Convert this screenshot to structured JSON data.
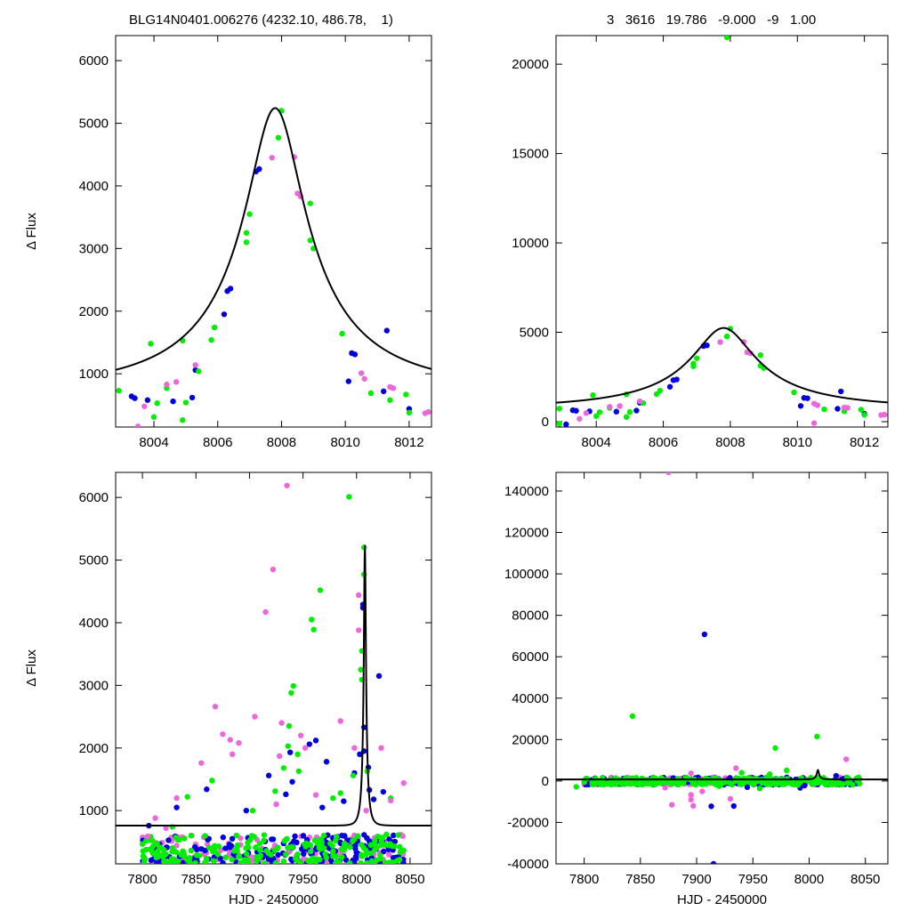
{
  "header": {
    "left": "BLG14N0401.006276 (4232.10, 486.78,    1)",
    "right": "3   3616   19.786   -9.000   -9   1.00"
  },
  "colors": {
    "blue": "#0000dd",
    "green": "#00ee00",
    "pink": "#ee66dd",
    "model": "#000000"
  },
  "chart_data": [
    {
      "type": "scatter",
      "panel": "top-left",
      "xlabel": "",
      "ylabel": "Δ Flux",
      "xlim": [
        8002.8,
        8012.7
      ],
      "ylim": [
        150,
        6400
      ],
      "xticks": [
        8004,
        8006,
        8008,
        8010,
        8012
      ],
      "yticks": [
        1000,
        2000,
        3000,
        4000,
        5000,
        6000
      ],
      "model": {
        "t0": 7.8,
        "u0": 0.2,
        "tE": 4.6,
        "fs": 1100,
        "base": -340
      },
      "series": [
        {
          "color": "blue",
          "points": [
            [
              8003.3,
              640
            ],
            [
              8003.4,
              610
            ],
            [
              8003.8,
              580
            ],
            [
              8004.6,
              560
            ],
            [
              8005.2,
              620
            ],
            [
              8005.3,
              1060
            ],
            [
              8006.2,
              1950
            ],
            [
              8006.3,
              2320
            ],
            [
              8006.4,
              2360
            ],
            [
              8007.2,
              4230
            ],
            [
              8007.3,
              4270
            ],
            [
              8010.2,
              1330
            ],
            [
              8010.3,
              1310
            ],
            [
              8010.1,
              880
            ],
            [
              8011.2,
              720
            ],
            [
              8011.3,
              1690
            ],
            [
              8012.0,
              440
            ]
          ]
        },
        {
          "color": "green",
          "points": [
            [
              8002.9,
              730
            ],
            [
              8003.9,
              1480
            ],
            [
              8004.0,
              310
            ],
            [
              8004.1,
              530
            ],
            [
              8004.4,
              770
            ],
            [
              8004.9,
              1530
            ],
            [
              8004.9,
              260
            ],
            [
              8005.0,
              540
            ],
            [
              8005.4,
              1040
            ],
            [
              8005.9,
              1740
            ],
            [
              8005.8,
              1540
            ],
            [
              8006.9,
              3250
            ],
            [
              8006.9,
              3100
            ],
            [
              8007.0,
              3550
            ],
            [
              8007.9,
              4770
            ],
            [
              8008.0,
              5200
            ],
            [
              8008.9,
              3720
            ],
            [
              8008.9,
              3130
            ],
            [
              8009.0,
              3000
            ],
            [
              8009.9,
              1640
            ],
            [
              8010.8,
              690
            ],
            [
              8011.4,
              580
            ],
            [
              8011.9,
              670
            ],
            [
              8012.0,
              380
            ]
          ]
        },
        {
          "color": "pink",
          "points": [
            [
              8003.5,
              160
            ],
            [
              8003.7,
              480
            ],
            [
              8004.4,
              830
            ],
            [
              8004.7,
              870
            ],
            [
              8005.3,
              1140
            ],
            [
              8007.7,
              4450
            ],
            [
              8008.4,
              4460
            ],
            [
              8008.5,
              3880
            ],
            [
              8008.6,
              3830
            ],
            [
              8010.5,
              1010
            ],
            [
              8010.6,
              920
            ],
            [
              8011.4,
              790
            ],
            [
              8011.5,
              770
            ],
            [
              8012.6,
              390
            ],
            [
              8012.5,
              370
            ]
          ]
        }
      ]
    },
    {
      "type": "scatter",
      "panel": "top-right",
      "xlabel": "",
      "ylabel": "",
      "xlim": [
        8002.8,
        8012.7
      ],
      "ylim": [
        -300,
        21600
      ],
      "xticks": [
        8004,
        8006,
        8008,
        8010,
        8012
      ],
      "yticks": [
        0,
        5000,
        10000,
        15000,
        20000
      ],
      "model": {
        "t0": 7.8,
        "u0": 0.2,
        "tE": 4.6,
        "fs": 1100,
        "base": -340
      },
      "series": [
        {
          "color": "blue",
          "points": [
            [
              8003.3,
              640
            ],
            [
              8003.4,
              610
            ],
            [
              8003.8,
              580
            ],
            [
              8004.6,
              560
            ],
            [
              8005.2,
              620
            ],
            [
              8005.3,
              1060
            ],
            [
              8006.2,
              1950
            ],
            [
              8006.3,
              2320
            ],
            [
              8006.4,
              2360
            ],
            [
              8007.2,
              4230
            ],
            [
              8007.3,
              4270
            ],
            [
              8010.2,
              1330
            ],
            [
              8010.3,
              1310
            ],
            [
              8010.1,
              880
            ],
            [
              8011.2,
              720
            ],
            [
              8011.3,
              1690
            ],
            [
              8012.0,
              440
            ],
            [
              8003.1,
              -150
            ]
          ]
        },
        {
          "color": "green",
          "points": [
            [
              8002.9,
              730
            ],
            [
              8003.9,
              1480
            ],
            [
              8004.0,
              310
            ],
            [
              8004.1,
              530
            ],
            [
              8004.4,
              770
            ],
            [
              8004.9,
              1530
            ],
            [
              8004.9,
              260
            ],
            [
              8005.0,
              540
            ],
            [
              8005.4,
              1040
            ],
            [
              8005.9,
              1740
            ],
            [
              8005.8,
              1540
            ],
            [
              8006.9,
              3250
            ],
            [
              8006.9,
              3100
            ],
            [
              8007.0,
              3550
            ],
            [
              8007.9,
              4770
            ],
            [
              8008.0,
              5200
            ],
            [
              8008.9,
              3720
            ],
            [
              8008.9,
              3130
            ],
            [
              8009.0,
              3000
            ],
            [
              8009.9,
              1640
            ],
            [
              8010.8,
              690
            ],
            [
              8011.4,
              580
            ],
            [
              8011.9,
              670
            ],
            [
              8012.0,
              380
            ],
            [
              8007.9,
              21500
            ],
            [
              8002.9,
              -120
            ]
          ]
        },
        {
          "color": "pink",
          "points": [
            [
              8003.5,
              160
            ],
            [
              8003.7,
              480
            ],
            [
              8004.4,
              830
            ],
            [
              8004.7,
              870
            ],
            [
              8005.3,
              1140
            ],
            [
              8007.7,
              4450
            ],
            [
              8008.4,
              4460
            ],
            [
              8008.5,
              3880
            ],
            [
              8008.6,
              3830
            ],
            [
              8010.5,
              1010
            ],
            [
              8010.6,
              920
            ],
            [
              8011.4,
              790
            ],
            [
              8011.5,
              770
            ],
            [
              8012.6,
              390
            ],
            [
              8012.5,
              370
            ],
            [
              8010.5,
              -80
            ]
          ]
        }
      ]
    },
    {
      "type": "scatter",
      "panel": "bottom-left",
      "xlabel": "HJD - 2450000",
      "ylabel": "Δ Flux",
      "xlim": [
        7775,
        8070
      ],
      "ylim": [
        150,
        6400
      ],
      "xticks": [
        7800,
        7850,
        7900,
        7950,
        8000,
        8050
      ],
      "yticks": [
        1000,
        2000,
        3000,
        4000,
        5000,
        6000
      ],
      "model": {
        "t0": 8007.8,
        "u0": 0.2,
        "tE": 4.6,
        "fs": 1100,
        "base": -340
      },
      "dense": {
        "x_range": [
          7800,
          8045
        ],
        "y_range": [
          160,
          620
        ],
        "counts": {
          "blue": 170,
          "green": 210,
          "pink": 130
        },
        "seed": 7
      },
      "series": [
        {
          "color": "blue",
          "points": [
            [
              7806,
              760
            ],
            [
              7832,
              1050
            ],
            [
              7860,
              1340
            ],
            [
              7897,
              1000
            ],
            [
              7918,
              1560
            ],
            [
              7938,
              1930
            ],
            [
              7956,
              2060
            ],
            [
              7962,
              2120
            ],
            [
              7968,
              1050
            ],
            [
              7972,
              1780
            ],
            [
              7988,
              1150
            ],
            [
              7998,
              1600
            ],
            [
              8003,
              1900
            ],
            [
              8006,
              4290
            ],
            [
              8006,
              4240
            ],
            [
              8007,
              2330
            ],
            [
              8007,
              1950
            ],
            [
              8012,
              1330
            ],
            [
              8016,
              1180
            ],
            [
              8021,
              3150
            ],
            [
              8025,
              1300
            ],
            [
              7934,
              1260
            ],
            [
              7940,
              1460
            ],
            [
              8011,
              1690
            ]
          ]
        },
        {
          "color": "green",
          "points": [
            [
              7828,
              740
            ],
            [
              7842,
              1220
            ],
            [
              7865,
              1480
            ],
            [
              7903,
              1000
            ],
            [
              7924,
              1310
            ],
            [
              7932,
              1680
            ],
            [
              7936,
              2030
            ],
            [
              7939,
              2880
            ],
            [
              7941,
              2990
            ],
            [
              7946,
              1630
            ],
            [
              7958,
              4050
            ],
            [
              7960,
              3890
            ],
            [
              7966,
              4520
            ],
            [
              7978,
              1200
            ],
            [
              7985,
              1280
            ],
            [
              7993,
              6010
            ],
            [
              7997,
              1560
            ],
            [
              8007,
              5200
            ],
            [
              8007,
              4770
            ],
            [
              8004,
              3250
            ],
            [
              8005,
              3090
            ],
            [
              8005,
              3550
            ],
            [
              8010,
              1630
            ],
            [
              8032,
              1200
            ],
            [
              8039,
              610
            ],
            [
              7937,
              2350
            ],
            [
              7945,
              1900
            ]
          ]
        },
        {
          "color": "pink",
          "points": [
            [
              7805,
              590
            ],
            [
              7812,
              880
            ],
            [
              7822,
              720
            ],
            [
              7832,
              1200
            ],
            [
              7855,
              1760
            ],
            [
              7868,
              2660
            ],
            [
              7875,
              2220
            ],
            [
              7882,
              2130
            ],
            [
              7884,
              1900
            ],
            [
              7905,
              2500
            ],
            [
              7915,
              4170
            ],
            [
              7922,
              4850
            ],
            [
              7928,
              1870
            ],
            [
              7930,
              2400
            ],
            [
              7935,
              6190
            ],
            [
              7948,
              2200
            ],
            [
              7952,
              2000
            ],
            [
              7962,
              1250
            ],
            [
              7985,
              2430
            ],
            [
              7998,
              2000
            ],
            [
              8002,
              4440
            ],
            [
              8002,
              3880
            ],
            [
              8009,
              1000
            ],
            [
              8023,
              2000
            ],
            [
              8032,
              1160
            ],
            [
              8044,
              1440
            ],
            [
              7890,
              2080
            ],
            [
              7925,
              1100
            ]
          ]
        }
      ]
    },
    {
      "type": "scatter",
      "panel": "bottom-right",
      "xlabel": "HJD - 2450000",
      "ylabel": "",
      "xlim": [
        7775,
        8070
      ],
      "ylim": [
        -40000,
        149000
      ],
      "xticks": [
        7800,
        7850,
        7900,
        7950,
        8000,
        8050
      ],
      "yticks": [
        -40000,
        -20000,
        0,
        20000,
        40000,
        60000,
        80000,
        100000,
        120000,
        140000
      ],
      "model": {
        "t0": 8007.8,
        "u0": 0.2,
        "tE": 4.6,
        "fs": 1100,
        "base": -340
      },
      "dense": {
        "x_range": [
          7800,
          8045
        ],
        "y_range": [
          -1800,
          1800
        ],
        "counts": {
          "blue": 150,
          "green": 260,
          "pink": 110
        },
        "seed": 11
      },
      "series": [
        {
          "color": "blue",
          "points": [
            [
              7907,
              70800
            ],
            [
              7913,
              -12200
            ],
            [
              7933,
              -12100
            ],
            [
              7915,
              -40000
            ],
            [
              7996,
              -2200
            ],
            [
              8024,
              2500
            ],
            [
              7945,
              -3000
            ],
            [
              7992,
              -3300
            ]
          ]
        },
        {
          "color": "green",
          "points": [
            [
              7843,
              31300
            ],
            [
              7970,
              15900
            ],
            [
              8007,
              21500
            ],
            [
              7793,
              -2800
            ],
            [
              7956,
              -3600
            ],
            [
              7990,
              -2000
            ],
            [
              7920,
              -2500
            ],
            [
              7940,
              4000
            ],
            [
              8030,
              -1500
            ],
            [
              7965,
              3300
            ],
            [
              7980,
              5100
            ],
            [
              7860,
              -1500
            ]
          ]
        },
        {
          "color": "pink",
          "points": [
            [
              7875,
              149000
            ],
            [
              7895,
              -9000
            ],
            [
              7897,
              -12000
            ],
            [
              7895,
              -6700
            ],
            [
              7878,
              -11500
            ],
            [
              7935,
              6200
            ],
            [
              7930,
              -8600
            ],
            [
              8033,
              10500
            ],
            [
              7905,
              -5000
            ],
            [
              7895,
              3700
            ],
            [
              7872,
              -3200
            ]
          ]
        }
      ]
    }
  ]
}
